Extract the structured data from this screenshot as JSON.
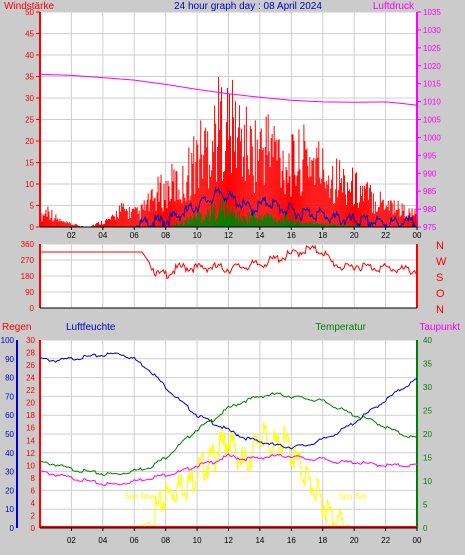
{
  "title": "24 hour graph day : 08 April 2024",
  "colors": {
    "background": "#cbcbcb",
    "plot": "#ffffff",
    "red": "#ff0000",
    "blue": "#0000cc",
    "green": "#008000",
    "magenta": "#ff00ff",
    "yellow": "#ffff00",
    "grid": "#cfcfcf"
  },
  "x_ticks": [
    "02",
    "04",
    "06",
    "08",
    "10",
    "12",
    "14",
    "16",
    "18",
    "20",
    "22",
    "00"
  ],
  "chart_data": [
    {
      "type": "bar",
      "name": "wind-pressure",
      "labels": {
        "left": "Windstärke",
        "right": "Luftdruck"
      },
      "y_left": {
        "ticks": [
          0,
          5,
          10,
          15,
          20,
          25,
          30,
          35,
          40,
          45,
          50
        ],
        "ylim": [
          0,
          50
        ]
      },
      "y_right": {
        "ticks": [
          975,
          980,
          985,
          990,
          995,
          1000,
          1005,
          1010,
          1015,
          1020,
          1025,
          1030,
          1035
        ],
        "ylim": [
          975,
          1035
        ]
      },
      "x_hours": [
        0,
        24
      ],
      "series": [
        {
          "key": "gust",
          "color": "#ff0000",
          "type": "bar",
          "points": [
            [
              0,
              2
            ],
            [
              0.5,
              4
            ],
            [
              1,
              2
            ],
            [
              1.5,
              1
            ],
            [
              3,
              0
            ],
            [
              4.7,
              2
            ],
            [
              5,
              4
            ],
            [
              6.3,
              3
            ],
            [
              6.8,
              5
            ],
            [
              7.2,
              6
            ],
            [
              7.6,
              8
            ],
            [
              8,
              8
            ],
            [
              8.5,
              10
            ],
            [
              9,
              9
            ],
            [
              9.5,
              13
            ],
            [
              10,
              16
            ],
            [
              10.5,
              18
            ],
            [
              11,
              20
            ],
            [
              11.5,
              24
            ],
            [
              12,
              23
            ],
            [
              12.5,
              22
            ],
            [
              13,
              19
            ],
            [
              13.5,
              17
            ],
            [
              14,
              18
            ],
            [
              14.5,
              19
            ],
            [
              15,
              18
            ],
            [
              15.5,
              15
            ],
            [
              16,
              14
            ],
            [
              16.5,
              15
            ],
            [
              17,
              16
            ],
            [
              17.5,
              15
            ],
            [
              18,
              13
            ],
            [
              18.5,
              12
            ],
            [
              19,
              11
            ],
            [
              19.5,
              10
            ],
            [
              20,
              9
            ],
            [
              20.5,
              8
            ],
            [
              21,
              7
            ],
            [
              21.5,
              6
            ],
            [
              22,
              6
            ],
            [
              22.5,
              5
            ],
            [
              23,
              4
            ],
            [
              23.5,
              3
            ],
            [
              24,
              3
            ]
          ]
        },
        {
          "key": "average",
          "color": "#0000cc",
          "type": "line",
          "points": [
            [
              0,
              0
            ],
            [
              6,
              0
            ],
            [
              7,
              1
            ],
            [
              8,
              1.5
            ],
            [
              9,
              3
            ],
            [
              10,
              5
            ],
            [
              11,
              7
            ],
            [
              11.5,
              8
            ],
            [
              12,
              7
            ],
            [
              12.5,
              6
            ],
            [
              13,
              5
            ],
            [
              13.5,
              4
            ],
            [
              14,
              5
            ],
            [
              14.5,
              6
            ],
            [
              15,
              5
            ],
            [
              15.5,
              4
            ],
            [
              16,
              4
            ],
            [
              16.5,
              3
            ],
            [
              17,
              3.5
            ],
            [
              17.5,
              3
            ],
            [
              18,
              3
            ],
            [
              18.5,
              2
            ],
            [
              19,
              2
            ],
            [
              19.5,
              1.5
            ],
            [
              20,
              1.5
            ],
            [
              21,
              1.2
            ],
            [
              22,
              1
            ],
            [
              23,
              1
            ],
            [
              24,
              1
            ]
          ]
        },
        {
          "key": "green-bars",
          "color": "#008000",
          "type": "bar",
          "points": [
            [
              9,
              1
            ],
            [
              9.5,
              2
            ],
            [
              10,
              3
            ],
            [
              10.5,
              3
            ],
            [
              11,
              4
            ],
            [
              11.5,
              5
            ],
            [
              12,
              4
            ],
            [
              12.5,
              3
            ],
            [
              13,
              2
            ],
            [
              13.5,
              3
            ],
            [
              14,
              2
            ],
            [
              14.5,
              3
            ],
            [
              15,
              2
            ],
            [
              15.5,
              2
            ],
            [
              16,
              2
            ],
            [
              16.5,
              1
            ],
            [
              17,
              1
            ],
            [
              17.5,
              1
            ],
            [
              18,
              1
            ],
            [
              19,
              0.5
            ],
            [
              20,
              0.5
            ]
          ]
        },
        {
          "key": "pressure",
          "color": "#ff00ff",
          "type": "line",
          "axis": "right",
          "points": [
            [
              0,
              1017.6
            ],
            [
              2,
              1017.3
            ],
            [
              4,
              1016.7
            ],
            [
              6,
              1016.0
            ],
            [
              8,
              1014.8
            ],
            [
              10,
              1013.4
            ],
            [
              12,
              1012.2
            ],
            [
              14,
              1011.2
            ],
            [
              16,
              1010.4
            ],
            [
              18,
              1009.9
            ],
            [
              20,
              1009.8
            ],
            [
              22,
              1009.9
            ],
            [
              23,
              1009.5
            ],
            [
              24,
              1009.0
            ]
          ]
        }
      ]
    },
    {
      "type": "line",
      "name": "wind-direction",
      "y_left": {
        "ticks": [
          0,
          90,
          180,
          270,
          360
        ],
        "ylim": [
          0,
          360
        ]
      },
      "compass": [
        "N",
        "W",
        "S",
        "O",
        "N"
      ],
      "series": [
        {
          "key": "direction",
          "color": "#ff0000",
          "points": [
            [
              0,
              315
            ],
            [
              6.5,
              315
            ],
            [
              7,
              250
            ],
            [
              7.5,
              185
            ],
            [
              8,
              190
            ],
            [
              9,
              230
            ],
            [
              10,
              225
            ],
            [
              11,
              230
            ],
            [
              12,
              220
            ],
            [
              13,
              235
            ],
            [
              14,
              245
            ],
            [
              15,
              275
            ],
            [
              16,
              300
            ],
            [
              17,
              330
            ],
            [
              18,
              320
            ],
            [
              18.5,
              260
            ],
            [
              19,
              240
            ],
            [
              19.5,
              220
            ],
            [
              20,
              240
            ],
            [
              21,
              230
            ],
            [
              22,
              225
            ],
            [
              23,
              215
            ],
            [
              24,
              210
            ]
          ]
        }
      ]
    },
    {
      "type": "line",
      "name": "temp-humidity",
      "labels": {
        "regen": "Regen",
        "humidity": "Luftfeuchte",
        "temperature": "Temperatur",
        "dewpoint": "Taupunkt"
      },
      "y_blue": {
        "ticks": [
          0,
          10,
          20,
          30,
          40,
          50,
          60,
          70,
          80,
          90,
          100
        ],
        "ylim": [
          0,
          100
        ]
      },
      "y_red": {
        "ticks": [
          0,
          2,
          4,
          6,
          8,
          10,
          12,
          14,
          16,
          18,
          20,
          22,
          24,
          26,
          28,
          30
        ],
        "ylim": [
          0,
          30
        ]
      },
      "y_right": {
        "ticks": [
          0,
          5,
          10,
          15,
          20,
          25,
          30,
          35,
          40
        ],
        "ylim": [
          0,
          40
        ]
      },
      "annotations": [
        {
          "text": "Sun Rise",
          "hour": 6.4
        },
        {
          "text": "Sun Set",
          "hour": 19.9
        }
      ],
      "series": [
        {
          "key": "humidity",
          "color": "#0000cc",
          "axis": "blue",
          "points": [
            [
              0,
              90
            ],
            [
              1,
              89
            ],
            [
              2,
              90
            ],
            [
              3,
              91
            ],
            [
              4,
              92
            ],
            [
              5,
              93
            ],
            [
              6,
              90
            ],
            [
              7,
              84
            ],
            [
              8,
              75
            ],
            [
              9,
              67
            ],
            [
              10,
              60
            ],
            [
              11,
              56
            ],
            [
              12,
              52
            ],
            [
              13,
              48
            ],
            [
              14,
              46
            ],
            [
              15,
              44
            ],
            [
              16,
              43
            ],
            [
              17,
              44
            ],
            [
              18,
              47
            ],
            [
              19,
              51
            ],
            [
              20,
              56
            ],
            [
              21,
              62
            ],
            [
              22,
              68
            ],
            [
              23,
              74
            ],
            [
              24,
              79
            ]
          ]
        },
        {
          "key": "temperature",
          "color": "#008000",
          "axis": "right",
          "points": [
            [
              0,
              14
            ],
            [
              1,
              13.5
            ],
            [
              2,
              12.5
            ],
            [
              3,
              12
            ],
            [
              4,
              11.5
            ],
            [
              5,
              11.5
            ],
            [
              6,
              12.2
            ],
            [
              7,
              13
            ],
            [
              8,
              15
            ],
            [
              9,
              18
            ],
            [
              10,
              21
            ],
            [
              11,
              23
            ],
            [
              12,
              25.5
            ],
            [
              13,
              27
            ],
            [
              14,
              28
            ],
            [
              15,
              28.5
            ],
            [
              16,
              28
            ],
            [
              17,
              27.5
            ],
            [
              18,
              27
            ],
            [
              19,
              25.5
            ],
            [
              20,
              24
            ],
            [
              21,
              23
            ],
            [
              22,
              21.5
            ],
            [
              23,
              20
            ],
            [
              24,
              19
            ]
          ]
        },
        {
          "key": "dewpoint",
          "color": "#ff00ff",
          "axis": "red",
          "points": [
            [
              0,
              9
            ],
            [
              1,
              8.5
            ],
            [
              2,
              8
            ],
            [
              3,
              7.5
            ],
            [
              4,
              7
            ],
            [
              5,
              7
            ],
            [
              6,
              7.5
            ],
            [
              7,
              8
            ],
            [
              8,
              8.5
            ],
            [
              9,
              9
            ],
            [
              10,
              10
            ],
            [
              11,
              10.5
            ],
            [
              12,
              11.5
            ],
            [
              13,
              11
            ],
            [
              14,
              11.2
            ],
            [
              15,
              11.5
            ],
            [
              16,
              11.5
            ],
            [
              17,
              11
            ],
            [
              18,
              11
            ],
            [
              19,
              10.5
            ],
            [
              20,
              10.5
            ],
            [
              21,
              10.2
            ],
            [
              22,
              10
            ],
            [
              23,
              10
            ],
            [
              24,
              10
            ]
          ]
        },
        {
          "key": "solar",
          "color": "#ffff00",
          "axis": "red",
          "points": [
            [
              6.2,
              0
            ],
            [
              7,
              1
            ],
            [
              7.5,
              3
            ],
            [
              8,
              5
            ],
            [
              8.5,
              6
            ],
            [
              9,
              7
            ],
            [
              9.5,
              7
            ],
            [
              10,
              9
            ],
            [
              10.5,
              10
            ],
            [
              11,
              11
            ],
            [
              11.5,
              13
            ],
            [
              12,
              14
            ],
            [
              12.5,
              12
            ],
            [
              13,
              10
            ],
            [
              13.5,
              12
            ],
            [
              14,
              15
            ],
            [
              14.5,
              14
            ],
            [
              15,
              13
            ],
            [
              15.5,
              14
            ],
            [
              16,
              12
            ],
            [
              16.5,
              10
            ],
            [
              17,
              8
            ],
            [
              17.5,
              6
            ],
            [
              18,
              4
            ],
            [
              18.5,
              2
            ],
            [
              19,
              1
            ],
            [
              19.5,
              0.5
            ],
            [
              20,
              0
            ]
          ]
        },
        {
          "key": "rain",
          "color": "#ff0000",
          "axis": "red",
          "points": [
            [
              0,
              0
            ],
            [
              24,
              0
            ]
          ]
        }
      ]
    }
  ]
}
